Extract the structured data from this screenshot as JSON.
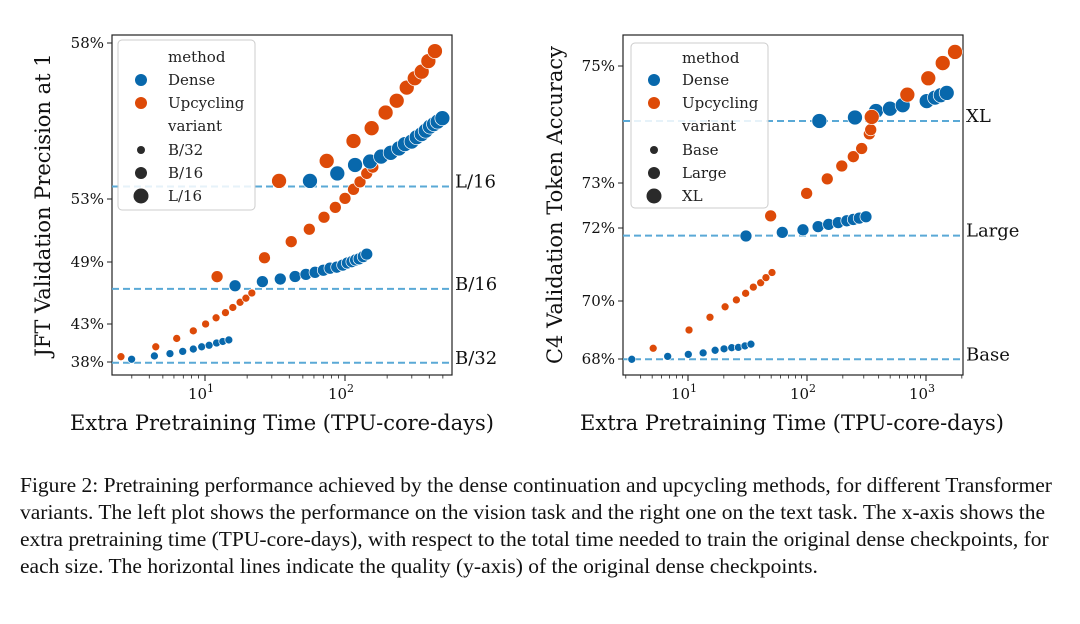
{
  "colors": {
    "Dense": "#0868ac",
    "Upcycling": "#dd4a08",
    "reference_line": "#5aa9d6"
  },
  "caption": "Figure 2: Pretraining performance achieved by the dense continuation and upcycling methods, for different Transformer variants. The left plot shows the performance on the vision task and the right one on the text task. The x-axis shows the extra pretraining time (TPU-core-days), with respect to the total time needed to train the original dense checkpoints, for each size. The horizontal lines indicate the quality (y-axis) of the original dense checkpoints.",
  "chart_data": [
    {
      "type": "scatter",
      "xlabel": "Extra Pretraining Time (TPU-core-days)",
      "ylabel": "JFT Validation Precision at 1",
      "xscale": "log",
      "xlim": [
        2.2,
        580
      ],
      "x_ticks": [
        {
          "base": "10",
          "exp": "1",
          "value": 10
        },
        {
          "base": "10",
          "exp": "2",
          "value": 100
        }
      ],
      "y_ticks": [
        {
          "label": "58%",
          "value": 58
        },
        {
          "label": "53%",
          "value": 53
        },
        {
          "label": "49%",
          "value": 49
        },
        {
          "label": "43%",
          "value": 43
        },
        {
          "label": "38%",
          "value": 38
        }
      ],
      "grid": false,
      "legend": {
        "placement": "top-left",
        "method_title": "method",
        "methods": [
          "Dense",
          "Upcycling"
        ],
        "variant_title": "variant",
        "variants": [
          "B/32",
          "B/16",
          "L/16"
        ]
      },
      "reference_lines": [
        {
          "label": "L/16",
          "value": 53.4
        },
        {
          "label": "B/16",
          "value": 46.4
        },
        {
          "label": "B/32",
          "value": 37.9
        }
      ],
      "series": [
        {
          "method": "Dense",
          "variant": "B/32",
          "x": [
            2.99,
            4.35,
            5.62,
            6.93,
            8.25,
            9.47,
            10.7,
            12.1,
            13.4,
            14.8
          ],
          "y": [
            38.36,
            38.8,
            39.1,
            39.4,
            39.7,
            40.0,
            40.2,
            40.5,
            40.7,
            40.9
          ]
        },
        {
          "method": "Upcycling",
          "variant": "B/32",
          "x": [
            2.51,
            4.45,
            6.28,
            8.25,
            10.1,
            12.0,
            14.0,
            15.8,
            17.8,
            19.6,
            21.6
          ],
          "y": [
            38.7,
            40.0,
            41.1,
            42.1,
            43.0,
            43.6,
            44.1,
            44.6,
            45.1,
            45.5,
            46.0
          ]
        },
        {
          "method": "Dense",
          "variant": "B/16",
          "x": [
            16.4,
            25.7,
            34.5,
            44,
            52.6,
            61.1,
            70,
            78.1,
            87.3,
            96.3,
            104,
            112,
            119,
            126,
            135,
            143
          ],
          "y": [
            46.7,
            47.1,
            47.35,
            47.6,
            47.8,
            48.0,
            48.2,
            48.4,
            48.5,
            48.7,
            48.9,
            49.02,
            49.13,
            49.2,
            49.34,
            49.5
          ]
        },
        {
          "method": "Upcycling",
          "variant": "B/16",
          "x": [
            12.2,
            26.6,
            41.3,
            55.6,
            70.8,
            85.3,
            100,
            115,
            128,
            143,
            158
          ],
          "y": [
            47.58,
            49.27,
            50.29,
            51.08,
            51.84,
            52.47,
            53.02,
            53.31,
            53.55,
            53.82,
            54.02
          ]
        },
        {
          "method": "Dense",
          "variant": "L/16",
          "x": [
            56.2,
            88.1,
            118,
            151,
            181,
            212,
            243,
            268,
            299,
            325,
            353,
            377,
            405,
            432,
            459,
            496
          ],
          "y": [
            53.58,
            53.82,
            54.09,
            54.2,
            54.36,
            54.48,
            54.62,
            54.76,
            54.84,
            54.98,
            55.08,
            55.19,
            55.32,
            55.4,
            55.48,
            55.59
          ]
        },
        {
          "method": "Upcycling",
          "variant": "L/16",
          "x": [
            33.8,
            74,
            115,
            155,
            195,
            234,
            276,
            315,
            353,
            394,
            439
          ],
          "y": [
            53.58,
            54.22,
            54.86,
            55.27,
            55.77,
            56.15,
            56.57,
            56.87,
            57.08,
            57.42,
            57.74
          ]
        }
      ]
    },
    {
      "type": "scatter",
      "xlabel": "Extra Pretraining Time (TPU-core-days)",
      "ylabel": "C4 Validation Token Accuracy",
      "xscale": "log",
      "xlim": [
        2.8,
        2050
      ],
      "x_ticks": [
        {
          "base": "10",
          "exp": "1",
          "value": 10
        },
        {
          "base": "10",
          "exp": "2",
          "value": 100
        },
        {
          "base": "10",
          "exp": "3",
          "value": 1000
        }
      ],
      "y_ticks": [
        {
          "label": "75%",
          "value": 75
        },
        {
          "label": "73%",
          "value": 73
        },
        {
          "label": "72%",
          "value": 72
        },
        {
          "label": "70%",
          "value": 70
        },
        {
          "label": "68%",
          "value": 68
        }
      ],
      "grid": false,
      "legend": {
        "placement": "top-left",
        "method_title": "method",
        "methods": [
          "Dense",
          "Upcycling"
        ],
        "variant_title": "variant",
        "variants": [
          "Base",
          "Large",
          "XL"
        ]
      },
      "reference_lines": [
        {
          "label": "XL",
          "value": 74.06
        },
        {
          "label": "Large",
          "value": 71.79
        },
        {
          "label": "Base",
          "value": 67.99
        }
      ],
      "series": [
        {
          "method": "Dense",
          "variant": "Base",
          "x": [
            3.37,
            6.75,
            10.06,
            13.4,
            16.9,
            20.1,
            23.3,
            26.5,
            30.1,
            33.8
          ],
          "y": [
            67.99,
            68.09,
            68.16,
            68.21,
            68.3,
            68.35,
            68.39,
            68.4,
            68.45,
            68.51
          ]
        },
        {
          "method": "Upcycling",
          "variant": "Base",
          "x": [
            5.1,
            10.2,
            15.3,
            20.5,
            25.5,
            30.5,
            35.4,
            40.8,
            45.2,
            50.8
          ],
          "y": [
            68.37,
            69.0,
            69.44,
            69.8,
            70.03,
            70.21,
            70.38,
            70.5,
            70.64,
            70.78
          ]
        },
        {
          "method": "Dense",
          "variant": "Large",
          "x": [
            30.7,
            62,
            92.5,
            124,
            152,
            183,
            216,
            245,
            275,
            313
          ],
          "y": [
            71.78,
            71.88,
            71.95,
            72.03,
            72.08,
            72.12,
            72.16,
            72.19,
            72.22,
            72.25
          ]
        },
        {
          "method": "Upcycling",
          "variant": "Large",
          "x": [
            49.5,
            99.3,
            148,
            196,
            245,
            288,
            334,
            343
          ],
          "y": [
            72.27,
            72.77,
            73.07,
            73.29,
            73.45,
            73.59,
            73.84,
            73.91
          ]
        },
        {
          "method": "Dense",
          "variant": "XL",
          "x": [
            127,
            253,
            380,
            498,
            637,
            1014,
            1191,
            1330,
            1493
          ],
          "y": [
            74.06,
            74.12,
            74.23,
            74.27,
            74.33,
            74.4,
            74.46,
            74.5,
            74.54
          ]
        },
        {
          "method": "Upcycling",
          "variant": "XL",
          "x": [
            350,
            697,
            1045,
            1382,
            1753
          ],
          "y": [
            74.13,
            74.51,
            74.79,
            75.05,
            75.24
          ]
        }
      ]
    }
  ]
}
